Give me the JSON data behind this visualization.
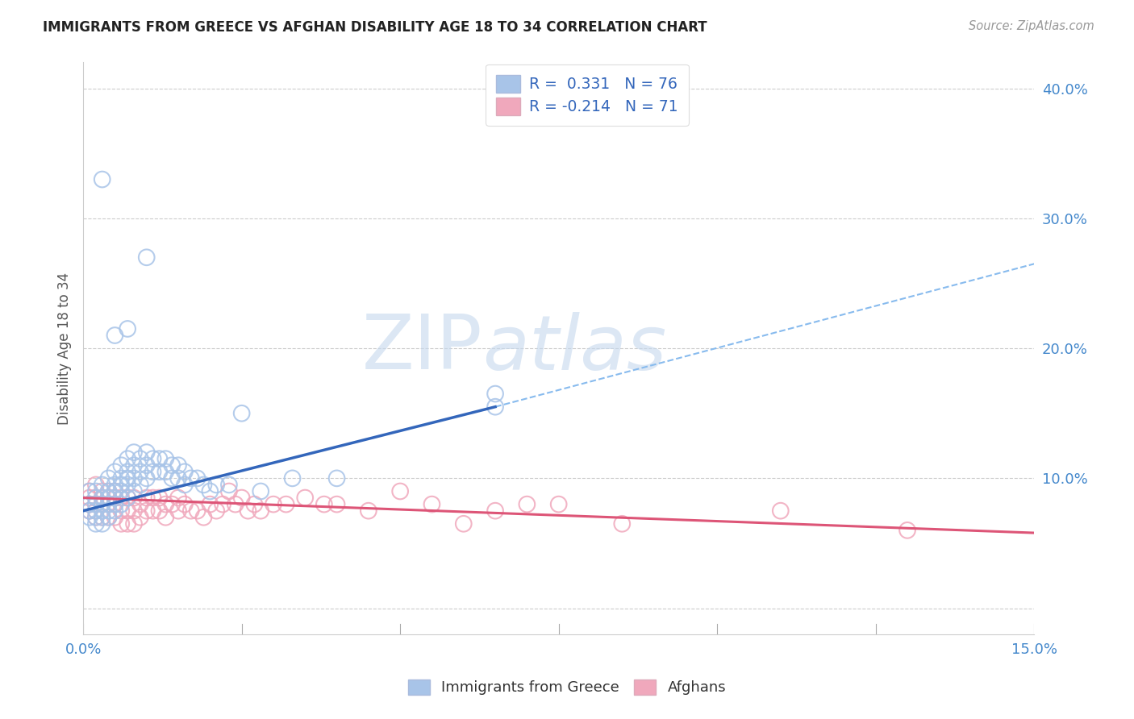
{
  "title": "IMMIGRANTS FROM GREECE VS AFGHAN DISABILITY AGE 18 TO 34 CORRELATION CHART",
  "source": "Source: ZipAtlas.com",
  "ylabel": "Disability Age 18 to 34",
  "xlim": [
    0.0,
    0.15
  ],
  "ylim": [
    -0.02,
    0.42
  ],
  "xticks": [
    0.0,
    0.025,
    0.05,
    0.075,
    0.1,
    0.125,
    0.15
  ],
  "ytick_positions_right": [
    0.0,
    0.1,
    0.2,
    0.3,
    0.4
  ],
  "ytick_labels_right": [
    "",
    "10.0%",
    "20.0%",
    "30.0%",
    "40.0%"
  ],
  "greece_color": "#a8c4e8",
  "afghan_color": "#f0a8bc",
  "greece_line_color": "#3366bb",
  "afghan_line_color": "#dd5577",
  "dashed_line_color": "#88bbee",
  "legend_greece_r": "R =  0.331",
  "legend_greece_n": "N = 76",
  "legend_afghan_r": "R = -0.214",
  "legend_afghan_n": "N = 71",
  "watermark_zip": "ZIP",
  "watermark_atlas": "atlas",
  "greece_line_x0": 0.0,
  "greece_line_y0": 0.075,
  "greece_line_x1": 0.065,
  "greece_line_y1": 0.155,
  "dash_line_x0": 0.065,
  "dash_line_y0": 0.155,
  "dash_line_x1": 0.15,
  "dash_line_y1": 0.265,
  "afghan_line_x0": 0.0,
  "afghan_line_y0": 0.085,
  "afghan_line_x1": 0.15,
  "afghan_line_y1": 0.058,
  "greece_points_x": [
    0.001,
    0.001,
    0.001,
    0.001,
    0.002,
    0.002,
    0.002,
    0.002,
    0.002,
    0.002,
    0.003,
    0.003,
    0.003,
    0.003,
    0.003,
    0.003,
    0.004,
    0.004,
    0.004,
    0.004,
    0.004,
    0.004,
    0.005,
    0.005,
    0.005,
    0.005,
    0.005,
    0.005,
    0.006,
    0.006,
    0.006,
    0.006,
    0.006,
    0.007,
    0.007,
    0.007,
    0.007,
    0.007,
    0.008,
    0.008,
    0.008,
    0.008,
    0.009,
    0.009,
    0.009,
    0.01,
    0.01,
    0.01,
    0.011,
    0.011,
    0.012,
    0.012,
    0.013,
    0.013,
    0.014,
    0.014,
    0.015,
    0.015,
    0.016,
    0.016,
    0.017,
    0.018,
    0.019,
    0.02,
    0.021,
    0.023,
    0.025,
    0.028,
    0.033,
    0.04,
    0.005,
    0.007,
    0.01,
    0.065,
    0.065,
    0.003
  ],
  "greece_points_y": [
    0.075,
    0.08,
    0.09,
    0.07,
    0.085,
    0.075,
    0.065,
    0.09,
    0.08,
    0.07,
    0.085,
    0.075,
    0.095,
    0.065,
    0.08,
    0.07,
    0.09,
    0.08,
    0.07,
    0.1,
    0.085,
    0.075,
    0.095,
    0.085,
    0.075,
    0.105,
    0.09,
    0.08,
    0.1,
    0.09,
    0.08,
    0.11,
    0.095,
    0.105,
    0.095,
    0.085,
    0.115,
    0.1,
    0.11,
    0.1,
    0.09,
    0.12,
    0.115,
    0.105,
    0.095,
    0.12,
    0.11,
    0.1,
    0.115,
    0.105,
    0.115,
    0.105,
    0.115,
    0.105,
    0.11,
    0.1,
    0.11,
    0.1,
    0.105,
    0.095,
    0.1,
    0.1,
    0.095,
    0.09,
    0.095,
    0.095,
    0.15,
    0.09,
    0.1,
    0.1,
    0.21,
    0.215,
    0.27,
    0.155,
    0.165,
    0.33
  ],
  "afghan_points_x": [
    0.001,
    0.001,
    0.001,
    0.001,
    0.002,
    0.002,
    0.002,
    0.002,
    0.002,
    0.003,
    0.003,
    0.003,
    0.003,
    0.004,
    0.004,
    0.004,
    0.004,
    0.005,
    0.005,
    0.005,
    0.005,
    0.006,
    0.006,
    0.006,
    0.007,
    0.007,
    0.007,
    0.008,
    0.008,
    0.008,
    0.009,
    0.009,
    0.01,
    0.01,
    0.011,
    0.011,
    0.012,
    0.012,
    0.013,
    0.013,
    0.014,
    0.015,
    0.015,
    0.016,
    0.017,
    0.018,
    0.019,
    0.02,
    0.021,
    0.022,
    0.023,
    0.024,
    0.025,
    0.026,
    0.027,
    0.028,
    0.03,
    0.032,
    0.035,
    0.038,
    0.04,
    0.045,
    0.05,
    0.055,
    0.06,
    0.065,
    0.075,
    0.085,
    0.11,
    0.13,
    0.07
  ],
  "afghan_points_y": [
    0.08,
    0.09,
    0.075,
    0.085,
    0.085,
    0.075,
    0.095,
    0.08,
    0.07,
    0.09,
    0.08,
    0.07,
    0.085,
    0.09,
    0.08,
    0.07,
    0.085,
    0.09,
    0.08,
    0.07,
    0.085,
    0.085,
    0.075,
    0.065,
    0.085,
    0.075,
    0.065,
    0.085,
    0.075,
    0.065,
    0.08,
    0.07,
    0.085,
    0.075,
    0.085,
    0.075,
    0.085,
    0.075,
    0.08,
    0.07,
    0.08,
    0.085,
    0.075,
    0.08,
    0.075,
    0.075,
    0.07,
    0.08,
    0.075,
    0.08,
    0.09,
    0.08,
    0.085,
    0.075,
    0.08,
    0.075,
    0.08,
    0.08,
    0.085,
    0.08,
    0.08,
    0.075,
    0.09,
    0.08,
    0.065,
    0.075,
    0.08,
    0.065,
    0.075,
    0.06,
    0.08
  ]
}
